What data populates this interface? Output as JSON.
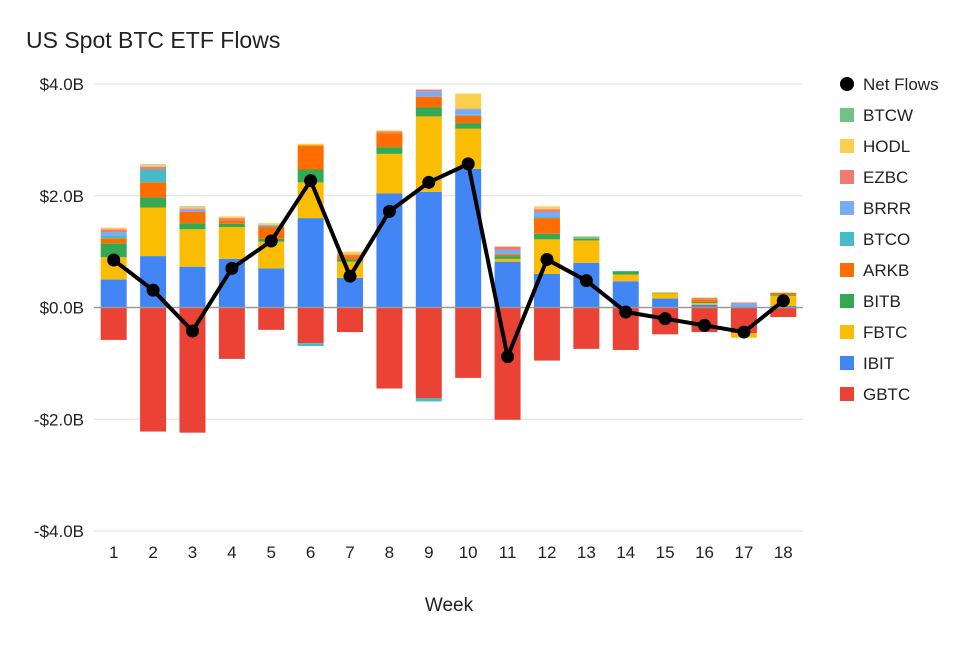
{
  "chart_data": {
    "type": "bar",
    "stacked": true,
    "title": "US Spot BTC ETF Flows",
    "xlabel": "Week",
    "ylabel": "",
    "ylim": [
      -4.0,
      4.0
    ],
    "yticks": [
      {
        "value": 4.0,
        "label": "$4.0B"
      },
      {
        "value": 2.0,
        "label": "$2.0B"
      },
      {
        "value": 0.0,
        "label": "$0.0B"
      },
      {
        "value": -2.0,
        "label": "-$2.0B"
      },
      {
        "value": -4.0,
        "label": "-$4.0B"
      }
    ],
    "categories": [
      "1",
      "2",
      "3",
      "4",
      "5",
      "6",
      "7",
      "8",
      "9",
      "10",
      "11",
      "12",
      "13",
      "14",
      "15",
      "16",
      "17",
      "18"
    ],
    "legend_position": "right",
    "series": [
      {
        "name": "GBTC",
        "color": "#ea4335",
        "values": [
          -0.58,
          -2.22,
          -2.24,
          -0.92,
          -0.4,
          -0.64,
          -0.44,
          -1.45,
          -1.62,
          -1.26,
          -2.01,
          -0.95,
          -0.74,
          -0.76,
          -0.48,
          -0.44,
          -0.46,
          -0.17
        ]
      },
      {
        "name": "IBIT",
        "color": "#4285f4",
        "values": [
          0.5,
          0.92,
          0.73,
          0.87,
          0.7,
          1.6,
          0.53,
          2.04,
          2.07,
          2.48,
          0.82,
          0.6,
          0.8,
          0.47,
          0.16,
          0.05,
          0.0,
          0.03
        ]
      },
      {
        "name": "FBTC",
        "color": "#fbbc04",
        "values": [
          0.4,
          0.87,
          0.67,
          0.57,
          0.48,
          0.64,
          0.29,
          0.71,
          1.35,
          0.72,
          0.05,
          0.62,
          0.4,
          0.12,
          0.09,
          0.03,
          -0.08,
          0.18
        ]
      },
      {
        "name": "BITB",
        "color": "#34a853",
        "values": [
          0.25,
          0.18,
          0.11,
          0.06,
          0.05,
          0.23,
          0.04,
          0.12,
          0.16,
          0.1,
          0.05,
          0.1,
          0.03,
          0.06,
          0.0,
          0.02,
          0.0,
          0.02
        ]
      },
      {
        "name": "ARKB",
        "color": "#ff6d01",
        "values": [
          0.09,
          0.27,
          0.2,
          0.06,
          0.21,
          0.43,
          0.06,
          0.25,
          0.19,
          0.13,
          0.03,
          0.28,
          0.0,
          0.0,
          0.0,
          0.04,
          0.0,
          0.03
        ]
      },
      {
        "name": "BTCO",
        "color": "#46bdc6",
        "values": [
          0.05,
          0.23,
          0.0,
          0.0,
          0.02,
          -0.05,
          0.0,
          0.0,
          -0.06,
          0.02,
          0.02,
          0.02,
          0.03,
          0.0,
          0.01,
          0.0,
          0.0,
          0.0
        ]
      },
      {
        "name": "BRRR",
        "color": "#7baaf7",
        "values": [
          0.06,
          0.0,
          0.04,
          0.0,
          0.01,
          0.0,
          0.0,
          0.0,
          0.1,
          0.1,
          0.06,
          0.09,
          0.0,
          0.0,
          0.0,
          0.0,
          0.07,
          0.0
        ]
      },
      {
        "name": "EZBC",
        "color": "#f07b72",
        "values": [
          0.05,
          0.05,
          0.02,
          0.04,
          0.01,
          0.0,
          0.03,
          0.03,
          0.03,
          0.01,
          0.06,
          0.05,
          0.0,
          0.0,
          0.0,
          0.03,
          0.02,
          0.0
        ]
      },
      {
        "name": "HODL",
        "color": "#fcd04f",
        "values": [
          0.03,
          0.03,
          0.03,
          0.03,
          0.03,
          0.03,
          0.05,
          0.02,
          0.0,
          0.27,
          0.0,
          0.05,
          0.02,
          0.0,
          0.02,
          0.01,
          0.0,
          0.01
        ]
      },
      {
        "name": "BTCW",
        "color": "#71c287",
        "values": [
          0.0,
          0.01,
          0.01,
          0.0,
          0.0,
          0.0,
          0.0,
          0.0,
          0.0,
          0.0,
          0.0,
          0.0,
          0.0,
          0.0,
          0.0,
          0.0,
          0.0,
          0.0
        ]
      }
    ],
    "net_flows": {
      "name": "Net Flows",
      "color": "#000000",
      "values": [
        0.85,
        0.31,
        -0.42,
        0.7,
        1.19,
        2.27,
        0.56,
        1.72,
        2.24,
        2.57,
        -0.88,
        0.86,
        0.48,
        -0.08,
        -0.2,
        -0.32,
        -0.44,
        0.12
      ]
    },
    "legend_order": [
      "Net Flows",
      "BTCW",
      "HODL",
      "EZBC",
      "BRRR",
      "BTCO",
      "ARKB",
      "BITB",
      "FBTC",
      "IBIT",
      "GBTC"
    ]
  }
}
